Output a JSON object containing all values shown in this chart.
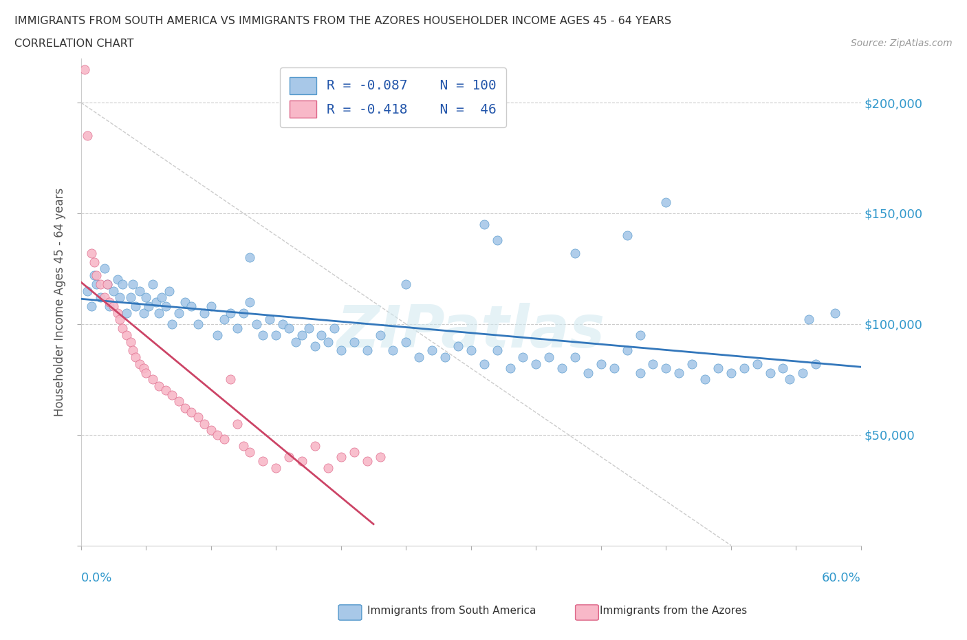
{
  "title_line1": "IMMIGRANTS FROM SOUTH AMERICA VS IMMIGRANTS FROM THE AZORES HOUSEHOLDER INCOME AGES 45 - 64 YEARS",
  "title_line2": "CORRELATION CHART",
  "source": "Source: ZipAtlas.com",
  "ylabel": "Householder Income Ages 45 - 64 years",
  "r_blue": -0.087,
  "n_blue": 100,
  "r_pink": -0.418,
  "n_pink": 46,
  "legend_label_blue": "Immigrants from South America",
  "legend_label_pink": "Immigrants from the Azores",
  "blue_color": "#a8c8e8",
  "blue_edge_color": "#5599cc",
  "blue_line_color": "#3377bb",
  "pink_color": "#f8b8c8",
  "pink_edge_color": "#dd6688",
  "pink_line_color": "#cc4466",
  "right_ytick_labels": [
    "",
    "$50,000",
    "$100,000",
    "$150,000",
    "$200,000"
  ],
  "xlim": [
    0.0,
    0.6
  ],
  "ylim": [
    0,
    220000
  ],
  "watermark": "ZIPatlas",
  "blue_scatter_x": [
    0.005,
    0.008,
    0.01,
    0.012,
    0.015,
    0.018,
    0.02,
    0.022,
    0.025,
    0.028,
    0.03,
    0.032,
    0.035,
    0.038,
    0.04,
    0.042,
    0.045,
    0.048,
    0.05,
    0.052,
    0.055,
    0.058,
    0.06,
    0.062,
    0.065,
    0.068,
    0.07,
    0.075,
    0.08,
    0.085,
    0.09,
    0.095,
    0.1,
    0.105,
    0.11,
    0.115,
    0.12,
    0.125,
    0.13,
    0.135,
    0.14,
    0.145,
    0.15,
    0.155,
    0.16,
    0.165,
    0.17,
    0.175,
    0.18,
    0.185,
    0.19,
    0.195,
    0.2,
    0.21,
    0.22,
    0.23,
    0.24,
    0.25,
    0.26,
    0.27,
    0.28,
    0.29,
    0.3,
    0.31,
    0.32,
    0.33,
    0.34,
    0.35,
    0.36,
    0.37,
    0.38,
    0.39,
    0.4,
    0.41,
    0.42,
    0.43,
    0.44,
    0.45,
    0.46,
    0.47,
    0.48,
    0.49,
    0.5,
    0.51,
    0.52,
    0.53,
    0.54,
    0.545,
    0.555,
    0.565,
    0.45,
    0.38,
    0.31,
    0.42,
    0.32,
    0.25,
    0.13,
    0.58,
    0.43,
    0.56
  ],
  "blue_scatter_y": [
    115000,
    108000,
    122000,
    118000,
    112000,
    125000,
    118000,
    108000,
    115000,
    120000,
    112000,
    118000,
    105000,
    112000,
    118000,
    108000,
    115000,
    105000,
    112000,
    108000,
    118000,
    110000,
    105000,
    112000,
    108000,
    115000,
    100000,
    105000,
    110000,
    108000,
    100000,
    105000,
    108000,
    95000,
    102000,
    105000,
    98000,
    105000,
    110000,
    100000,
    95000,
    102000,
    95000,
    100000,
    98000,
    92000,
    95000,
    98000,
    90000,
    95000,
    92000,
    98000,
    88000,
    92000,
    88000,
    95000,
    88000,
    92000,
    85000,
    88000,
    85000,
    90000,
    88000,
    82000,
    88000,
    80000,
    85000,
    82000,
    85000,
    80000,
    85000,
    78000,
    82000,
    80000,
    88000,
    78000,
    82000,
    80000,
    78000,
    82000,
    75000,
    80000,
    78000,
    80000,
    82000,
    78000,
    80000,
    75000,
    78000,
    82000,
    155000,
    132000,
    145000,
    140000,
    138000,
    118000,
    130000,
    105000,
    95000,
    102000
  ],
  "pink_scatter_x": [
    0.003,
    0.005,
    0.008,
    0.01,
    0.012,
    0.015,
    0.018,
    0.02,
    0.022,
    0.025,
    0.028,
    0.03,
    0.032,
    0.035,
    0.038,
    0.04,
    0.042,
    0.045,
    0.048,
    0.05,
    0.055,
    0.06,
    0.065,
    0.07,
    0.075,
    0.08,
    0.085,
    0.09,
    0.095,
    0.1,
    0.105,
    0.11,
    0.115,
    0.12,
    0.125,
    0.13,
    0.14,
    0.15,
    0.16,
    0.17,
    0.18,
    0.19,
    0.2,
    0.21,
    0.22,
    0.23
  ],
  "pink_scatter_y": [
    215000,
    185000,
    132000,
    128000,
    122000,
    118000,
    112000,
    118000,
    110000,
    108000,
    105000,
    102000,
    98000,
    95000,
    92000,
    88000,
    85000,
    82000,
    80000,
    78000,
    75000,
    72000,
    70000,
    68000,
    65000,
    62000,
    60000,
    58000,
    55000,
    52000,
    50000,
    48000,
    75000,
    55000,
    45000,
    42000,
    38000,
    35000,
    40000,
    38000,
    45000,
    35000,
    40000,
    42000,
    38000,
    40000
  ]
}
